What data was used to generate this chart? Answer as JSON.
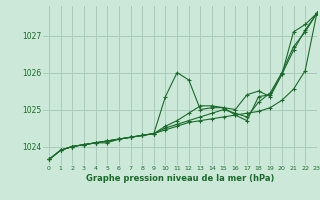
{
  "title": "Graphe pression niveau de la mer (hPa)",
  "background_color": "#cce8d8",
  "grid_color": "#aaccbb",
  "line_color": "#1a6b2a",
  "xlim": [
    -0.5,
    23
  ],
  "ylim": [
    1023.5,
    1027.8
  ],
  "yticks": [
    1024,
    1025,
    1026,
    1027
  ],
  "xticks": [
    0,
    1,
    2,
    3,
    4,
    5,
    6,
    7,
    8,
    9,
    10,
    11,
    12,
    13,
    14,
    15,
    16,
    17,
    18,
    19,
    20,
    21,
    22,
    23
  ],
  "series": [
    [
      1023.65,
      1023.9,
      1024.0,
      1024.05,
      1024.1,
      1024.1,
      1024.2,
      1024.25,
      1024.3,
      1024.35,
      1025.35,
      1026.0,
      1025.8,
      1025.0,
      1025.05,
      1025.05,
      1024.85,
      1024.7,
      1025.35,
      1025.4,
      1025.95,
      1027.1,
      1027.3,
      1027.6
    ],
    [
      1023.65,
      1023.9,
      1024.0,
      1024.05,
      1024.1,
      1024.15,
      1024.2,
      1024.25,
      1024.3,
      1024.35,
      1024.45,
      1024.55,
      1024.65,
      1024.7,
      1024.75,
      1024.8,
      1024.85,
      1024.9,
      1024.95,
      1025.05,
      1025.25,
      1025.55,
      1026.05,
      1027.6
    ],
    [
      1023.65,
      1023.9,
      1024.0,
      1024.05,
      1024.1,
      1024.15,
      1024.2,
      1024.25,
      1024.3,
      1024.35,
      1024.55,
      1024.7,
      1024.9,
      1025.1,
      1025.1,
      1025.05,
      1025.0,
      1025.4,
      1025.5,
      1025.35,
      1025.95,
      1026.6,
      1027.15,
      1027.6
    ],
    [
      1023.65,
      1023.9,
      1024.0,
      1024.05,
      1024.1,
      1024.15,
      1024.2,
      1024.25,
      1024.3,
      1024.35,
      1024.5,
      1024.6,
      1024.7,
      1024.8,
      1024.9,
      1025.0,
      1024.9,
      1024.8,
      1025.2,
      1025.45,
      1026.0,
      1026.7,
      1027.1,
      1027.6
    ]
  ]
}
